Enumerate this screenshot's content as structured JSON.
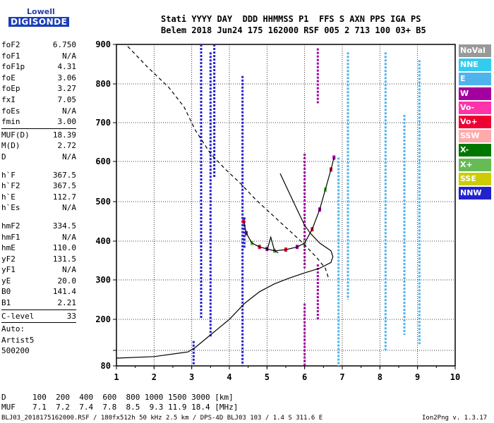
{
  "logo": {
    "top": "Lowell",
    "bottom": "DIGISONDE"
  },
  "header": {
    "line1": "Stati YYYY DAY  DDD HHMMSS P1  FFS S AXN PPS IGA PS",
    "line2": "Belem 2018 Jun24 175 162000 RSF 005 2 713 100 03+ B5"
  },
  "params": {
    "group1": [
      {
        "label": "foF2",
        "value": "6.750"
      },
      {
        "label": "foF1",
        "value": "N/A"
      },
      {
        "label": "foF1p",
        "value": "4.31"
      },
      {
        "label": "foE",
        "value": "3.06"
      },
      {
        "label": "foEp",
        "value": "3.27"
      },
      {
        "label": "fxI",
        "value": "7.05"
      },
      {
        "label": "foEs",
        "value": "N/A"
      },
      {
        "label": "fmin",
        "value": "3.00"
      }
    ],
    "group2": [
      {
        "label": "MUF(D)",
        "value": "18.39"
      },
      {
        "label": "M(D)",
        "value": "2.72"
      },
      {
        "label": "D",
        "value": "N/A"
      }
    ],
    "group3": [
      {
        "label": "h`F",
        "value": "367.5"
      },
      {
        "label": "h`F2",
        "value": "367.5"
      },
      {
        "label": "h`E",
        "value": "112.7"
      },
      {
        "label": "h`Es",
        "value": "N/A"
      }
    ],
    "group4": [
      {
        "label": "hmF2",
        "value": "334.5"
      },
      {
        "label": "hmF1",
        "value": "N/A"
      },
      {
        "label": "hmE",
        "value": "110.0"
      },
      {
        "label": "yF2",
        "value": "131.5"
      },
      {
        "label": "yF1",
        "value": "N/A"
      },
      {
        "label": "yE",
        "value": "20.0"
      },
      {
        "label": "B0",
        "value": "141.4"
      },
      {
        "label": "B1",
        "value": "2.21"
      }
    ],
    "clevel": {
      "label": "C-level",
      "value": "33"
    },
    "auto": [
      "Auto:",
      "Artist5",
      "500200"
    ]
  },
  "legend": [
    {
      "label": "NoVal",
      "color": "#999999"
    },
    {
      "label": "NNE",
      "color": "#33ccee"
    },
    {
      "label": "E",
      "color": "#4fb3ee"
    },
    {
      "label": "W",
      "color": "#a3009f"
    },
    {
      "label": "Vo-",
      "color": "#ff33aa"
    },
    {
      "label": "Vo+",
      "color": "#ee0033"
    },
    {
      "label": "SSW",
      "color": "#ffaaaa"
    },
    {
      "label": "X-",
      "color": "#007700"
    },
    {
      "label": "X+",
      "color": "#66bb55"
    },
    {
      "label": "SSE",
      "color": "#cccc00"
    },
    {
      "label": "NNW",
      "color": "#2222cc"
    }
  ],
  "muf_table": {
    "d_label": "D",
    "d_values": "100  200  400  600  800 1000 1500 3000 [km]",
    "muf_label": "MUF",
    "muf_values": "7.1  7.2  7.4  7.8  8.5  9.3 11.9 18.4 [MHz]"
  },
  "footer": {
    "left": "BLJ03_2018175162000.RSF / 180fx512h 50 kHz 2.5 km / DPS-4D BLJ03 103 / 1.4 S 311.6 E",
    "right": "Ion2Png v. 1.3.17"
  },
  "chart_data": {
    "type": "scatter",
    "xlim": [
      1,
      10
    ],
    "ylim": [
      80,
      900
    ],
    "x_ticks": [
      1,
      2,
      3,
      4,
      5,
      6,
      7,
      8,
      9,
      10
    ],
    "y_ticks": [
      80,
      100,
      200,
      300,
      400,
      500,
      600,
      700,
      800,
      900
    ],
    "y_tick_labels": [
      "80",
      "",
      "200",
      "300",
      "400",
      "500",
      "600",
      "700",
      "800",
      "900"
    ],
    "grid": true,
    "xlabel": "",
    "ylabel": "",
    "series": [
      {
        "id": "true_height_profile",
        "style": "solid",
        "color": "#000000",
        "points": [
          [
            1.0,
            90
          ],
          [
            2.0,
            92
          ],
          [
            2.9,
            98
          ],
          [
            3.1,
            110
          ],
          [
            3.4,
            140
          ],
          [
            3.7,
            170
          ],
          [
            4.0,
            200
          ],
          [
            4.4,
            240
          ],
          [
            4.8,
            270
          ],
          [
            5.2,
            290
          ],
          [
            5.6,
            305
          ],
          [
            6.0,
            318
          ],
          [
            6.4,
            330
          ],
          [
            6.7,
            345
          ],
          [
            6.75,
            360
          ],
          [
            6.7,
            375
          ],
          [
            6.4,
            395
          ],
          [
            6.15,
            420
          ],
          [
            6.0,
            440
          ],
          [
            5.9,
            460
          ],
          [
            5.8,
            480
          ],
          [
            5.65,
            510
          ],
          [
            5.5,
            540
          ],
          [
            5.35,
            570
          ]
        ]
      },
      {
        "id": "model_profile",
        "style": "dashed",
        "color": "#000000",
        "points": [
          [
            1.3,
            895
          ],
          [
            1.8,
            845
          ],
          [
            2.4,
            790
          ],
          [
            2.8,
            740
          ],
          [
            3.1,
            680
          ],
          [
            3.5,
            620
          ],
          [
            3.9,
            580
          ],
          [
            4.3,
            545
          ],
          [
            4.7,
            505
          ],
          [
            5.1,
            470
          ],
          [
            5.5,
            435
          ],
          [
            5.9,
            400
          ],
          [
            6.3,
            360
          ],
          [
            6.55,
            330
          ],
          [
            6.65,
            300
          ]
        ]
      },
      {
        "id": "o_trace_fit",
        "style": "solid",
        "color": "#000000",
        "points": [
          [
            4.38,
            450
          ],
          [
            4.45,
            420
          ],
          [
            4.6,
            395
          ],
          [
            4.8,
            385
          ],
          [
            5.0,
            380
          ],
          [
            5.2,
            375
          ],
          [
            5.5,
            378
          ],
          [
            5.8,
            385
          ],
          [
            6.0,
            395
          ],
          [
            6.2,
            430
          ],
          [
            6.4,
            480
          ],
          [
            6.55,
            530
          ],
          [
            6.7,
            580
          ],
          [
            6.78,
            610
          ]
        ]
      },
      {
        "id": "o_trace_low",
        "style": "solid",
        "color": "#000000",
        "points": [
          [
            5.0,
            375
          ],
          [
            5.1,
            410
          ],
          [
            5.2,
            375
          ],
          [
            5.3,
            370
          ]
        ]
      }
    ],
    "echo_columns": [
      {
        "x": 3.25,
        "y": [
          200,
          900
        ],
        "color": "NNW"
      },
      {
        "x": 3.5,
        "y": [
          140,
          880
        ],
        "color": "NNW"
      },
      {
        "x": 3.6,
        "y": [
          560,
          900
        ],
        "color": "NNW"
      },
      {
        "x": 4.35,
        "y": [
          80,
          820
        ],
        "color": "NNW"
      },
      {
        "x": 4.4,
        "y": [
          380,
          460
        ],
        "color": "NNW"
      },
      {
        "x": 3.05,
        "y": [
          80,
          130
        ],
        "color": "NNW"
      },
      {
        "x": 6.0,
        "y": [
          330,
          620
        ],
        "color": "W"
      },
      {
        "x": 6.0,
        "y": [
          80,
          240
        ],
        "color": "W"
      },
      {
        "x": 6.35,
        "y": [
          750,
          890
        ],
        "color": "W"
      },
      {
        "x": 6.35,
        "y": [
          200,
          340
        ],
        "color": "W"
      },
      {
        "x": 6.9,
        "y": [
          80,
          610
        ],
        "color": "E"
      },
      {
        "x": 7.15,
        "y": [
          250,
          880
        ],
        "color": "E"
      },
      {
        "x": 8.15,
        "y": [
          100,
          880
        ],
        "color": "E"
      },
      {
        "x": 8.65,
        "y": [
          150,
          720
        ],
        "color": "E"
      },
      {
        "x": 9.05,
        "y": [
          120,
          860
        ],
        "color": "E"
      }
    ]
  }
}
